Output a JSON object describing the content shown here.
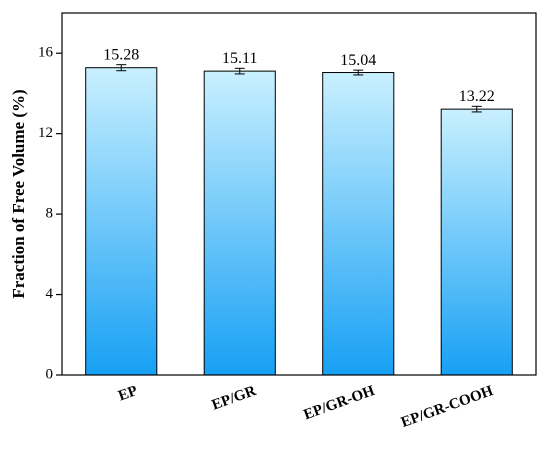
{
  "chart_data": {
    "type": "bar",
    "y_label": "Fraction of Free Volume (%)",
    "categories": [
      "EP",
      "EP/GR",
      "EP/GR-OH",
      "EP/GR-COOH"
    ],
    "values": [
      15.28,
      15.11,
      15.04,
      13.22
    ],
    "errors": [
      0.15,
      0.14,
      0.12,
      0.14
    ],
    "colors": [
      "#c9f0ff",
      "#17a0f4"
    ],
    "ylim": [
      0,
      18
    ],
    "yticks": [
      0,
      4,
      8,
      12,
      16
    ]
  }
}
